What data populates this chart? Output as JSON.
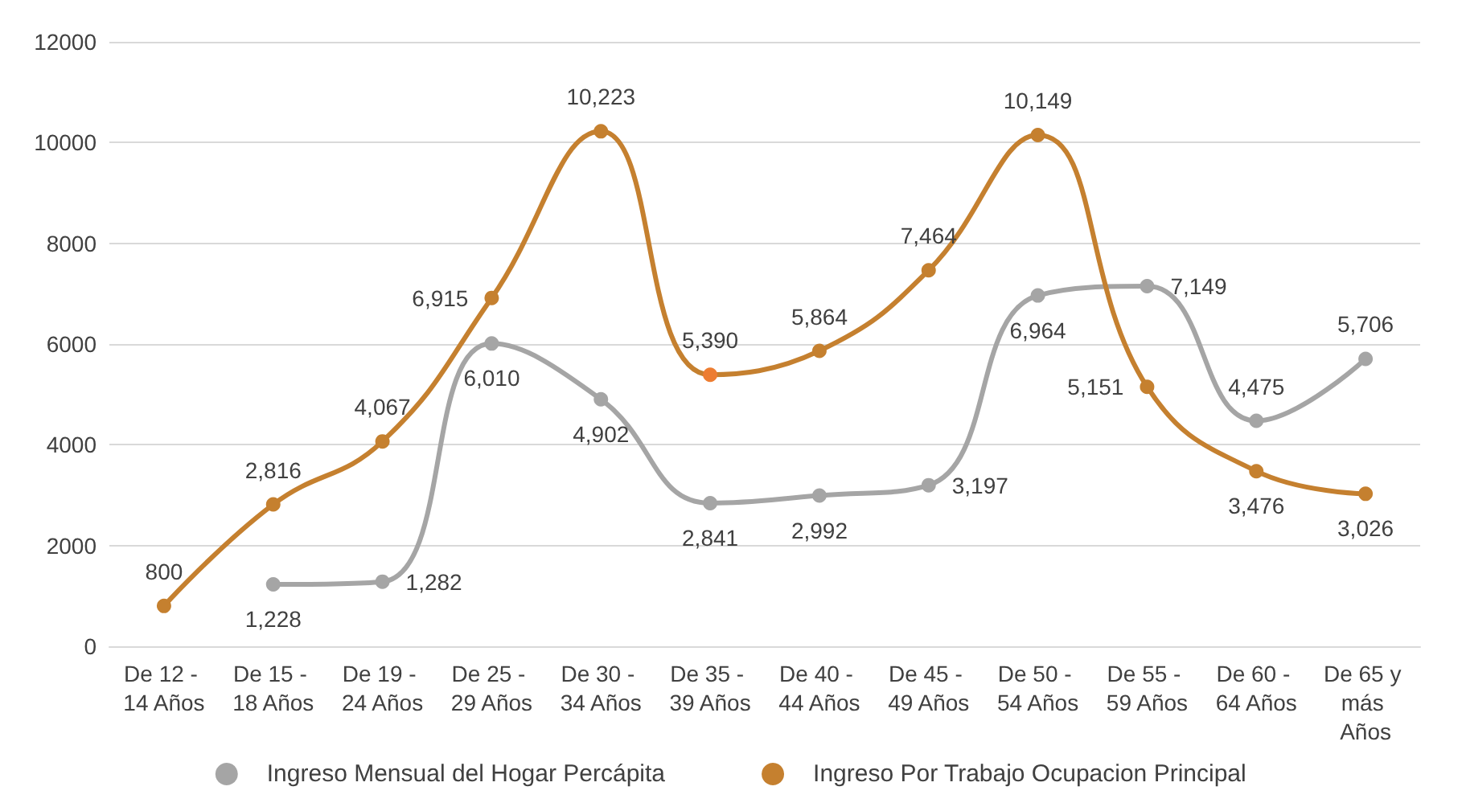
{
  "chart_data": {
    "type": "line",
    "categories": [
      "De 12 - 14 Años",
      "De 15 - 18 Años",
      "De 19 - 24 Años",
      "De 25 - 29 Años",
      "De 30 - 34 Años",
      "De 35 - 39 Años",
      "De 40 - 44 Años",
      "De 45 - 49 Años",
      "De 50 - 54 Años",
      "De 55 - 59 Años",
      "De 60 - 64 Años",
      "De 65 y más Años"
    ],
    "series": [
      {
        "name": "Ingreso Mensual del Hogar Percápita",
        "color": "#a5a5a5",
        "values": [
          null,
          1228,
          1282,
          6010,
          4902,
          2841,
          2992,
          3197,
          6964,
          7149,
          4475,
          5706
        ],
        "value_labels": [
          null,
          "1,228",
          "1,282",
          "6,010",
          "4,902",
          "2,841",
          "2,992",
          "3,197",
          "6,964",
          "7,149",
          "4,475",
          "5,706"
        ]
      },
      {
        "name": "Ingreso Por Trabajo Ocupacion Principal",
        "color": "#c5802f",
        "colors": [
          "#c5802f",
          "#c5802f",
          "#c5802f",
          "#c5802f",
          "#c5802f",
          "#ed7d31",
          "#c5802f",
          "#c5802f",
          "#c5802f",
          "#c5802f",
          "#c5802f",
          "#c5802f"
        ],
        "values": [
          800,
          2816,
          4067,
          6915,
          10223,
          5390,
          5864,
          7464,
          10149,
          5151,
          3476,
          3026
        ],
        "value_labels": [
          "800",
          "2,816",
          "4,067",
          "6,915",
          "10,223",
          "5,390",
          "5,864",
          "7,464",
          "10,149",
          "5,151",
          "3,476",
          "3,026"
        ]
      }
    ],
    "ylim": [
      0,
      12000
    ],
    "yticks": [
      0,
      2000,
      4000,
      6000,
      8000,
      10000,
      12000
    ],
    "grid": "y",
    "legend": "bottom",
    "marker": "circle",
    "line_style": "solid"
  }
}
